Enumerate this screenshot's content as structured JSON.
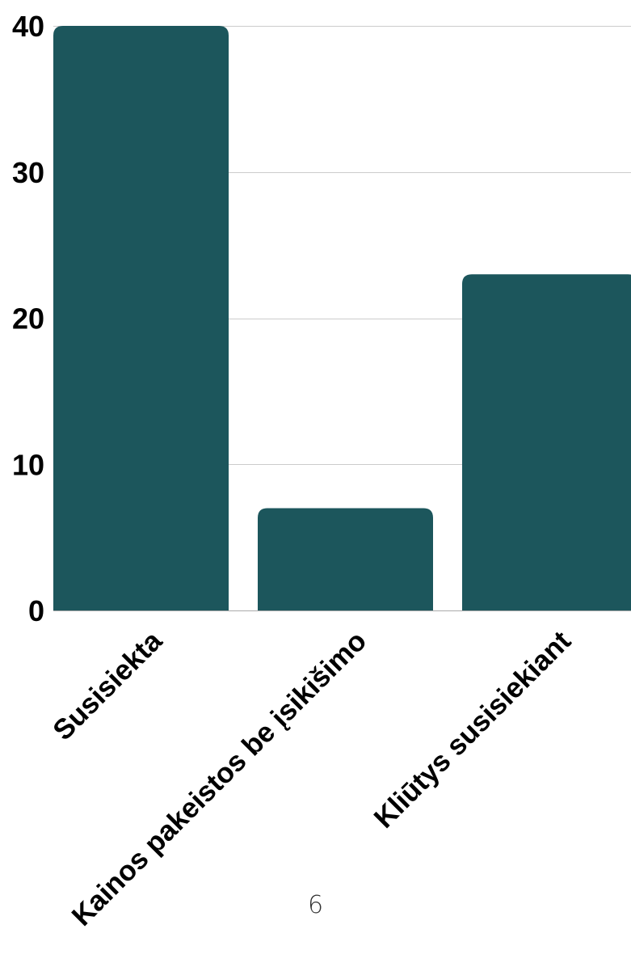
{
  "page": {
    "page_number": "6"
  },
  "colors": {
    "bar": "#1c565c",
    "grid": "#cccccc",
    "baseline": "#aaaaaa",
    "text": "#000000"
  },
  "chart_data": {
    "type": "bar",
    "title": "",
    "xlabel": "",
    "ylabel": "",
    "categories": [
      "Susisiekta",
      "Kainos pakeistos be įsikišimo",
      "Kliūtys susisiekiant"
    ],
    "values": [
      40,
      7,
      23
    ],
    "ylim": [
      0,
      40
    ],
    "yticks": [
      0,
      10,
      20,
      30,
      40
    ],
    "ytick_labels": [
      "0",
      "10",
      "20",
      "30",
      "40"
    ],
    "grid": true,
    "legend": "none"
  }
}
